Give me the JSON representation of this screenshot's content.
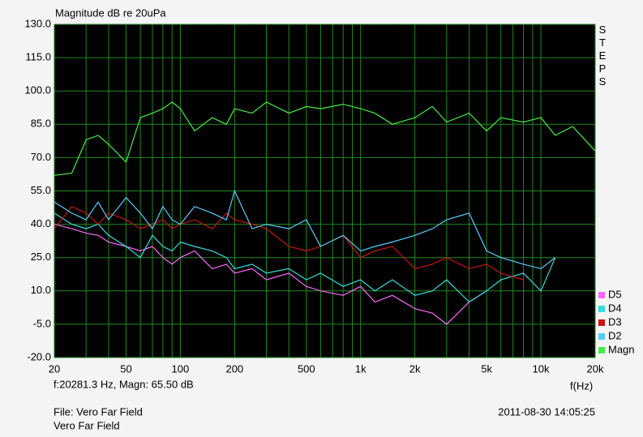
{
  "chart_data": {
    "type": "line",
    "title": "Magnitude dB re 20uPa",
    "side_label": "STEPS",
    "x_label": "f(Hz)",
    "cursor_readout": "f:20281.3 Hz, Magn: 65.50 dB",
    "file_label": "File: Vero Far Field",
    "subtitle": "Vero Far Field",
    "timestamp": "2011-08-30 14:05:25",
    "log_x": true,
    "grid": true,
    "grid_color": "#1f8a1f",
    "background": "#000000",
    "xlim": [
      20,
      20000
    ],
    "ylim": [
      -20,
      130
    ],
    "xticks": [
      20,
      50,
      100,
      200,
      500,
      {
        "value": 1000,
        "label": "1k"
      },
      {
        "value": 2000,
        "label": "2k"
      },
      {
        "value": 5000,
        "label": "5k"
      },
      {
        "value": 10000,
        "label": "10k"
      },
      {
        "value": 20000,
        "label": "20k"
      }
    ],
    "x_minor_ticks": [
      30,
      40,
      60,
      70,
      80,
      90,
      300,
      400,
      600,
      700,
      800,
      900,
      3000,
      4000,
      6000,
      7000,
      8000,
      9000
    ],
    "yticks": [
      {
        "value": 130,
        "label": "130.0"
      },
      {
        "value": 115,
        "label": "115.0"
      },
      {
        "value": 100,
        "label": "100.0"
      },
      {
        "value": 85,
        "label": "85.0"
      },
      {
        "value": 70,
        "label": "70.0"
      },
      {
        "value": 55,
        "label": "55.0"
      },
      {
        "value": 40,
        "label": "40.0"
      },
      {
        "value": 25,
        "label": "25.0"
      },
      {
        "value": 10,
        "label": "10.0"
      },
      {
        "value": -5,
        "label": "-5.0"
      },
      {
        "value": -20,
        "label": "-20.0"
      }
    ],
    "x": [
      20,
      25,
      30,
      35,
      40,
      50,
      60,
      70,
      80,
      90,
      100,
      120,
      150,
      180,
      200,
      250,
      300,
      400,
      500,
      600,
      800,
      1000,
      1200,
      1500,
      2000,
      2500,
      3000,
      4000,
      5000,
      6000,
      8000,
      10000,
      12000,
      15000,
      20000
    ],
    "series": [
      {
        "name": "D5",
        "color": "#ff66ff",
        "values": [
          40,
          38,
          36,
          35,
          32,
          30,
          28,
          30,
          25,
          22,
          25,
          28,
          20,
          22,
          18,
          20,
          15,
          18,
          12,
          10,
          8,
          12,
          5,
          8,
          2,
          0,
          -5,
          5,
          10,
          null,
          null,
          null,
          null,
          null,
          null
        ]
      },
      {
        "name": "D4",
        "color": "#33dddd",
        "values": [
          45,
          40,
          38,
          40,
          35,
          30,
          25,
          35,
          30,
          28,
          32,
          30,
          28,
          25,
          20,
          22,
          18,
          20,
          15,
          18,
          12,
          15,
          10,
          15,
          8,
          10,
          15,
          5,
          10,
          15,
          18,
          10,
          25,
          null,
          null
        ]
      },
      {
        "name": "D3",
        "color": "#cc1111",
        "values": [
          38,
          48,
          45,
          40,
          45,
          42,
          38,
          40,
          42,
          38,
          40,
          42,
          38,
          45,
          42,
          40,
          38,
          30,
          28,
          30,
          35,
          25,
          28,
          30,
          20,
          22,
          25,
          20,
          22,
          18,
          15,
          null,
          null,
          null,
          null
        ]
      },
      {
        "name": "D2",
        "color": "#55ccff",
        "values": [
          50,
          45,
          42,
          50,
          42,
          52,
          45,
          38,
          48,
          42,
          40,
          48,
          45,
          42,
          55,
          38,
          40,
          38,
          42,
          30,
          35,
          28,
          30,
          32,
          35,
          38,
          42,
          45,
          28,
          25,
          22,
          20,
          25,
          null,
          null
        ]
      },
      {
        "name": "Magn",
        "color": "#44ee44",
        "values": [
          62,
          63,
          78,
          80,
          76,
          68,
          88,
          90,
          92,
          95,
          92,
          82,
          88,
          85,
          92,
          90,
          95,
          90,
          93,
          92,
          94,
          92,
          90,
          85,
          88,
          93,
          86,
          90,
          82,
          88,
          86,
          88,
          80,
          84,
          73
        ]
      }
    ]
  }
}
